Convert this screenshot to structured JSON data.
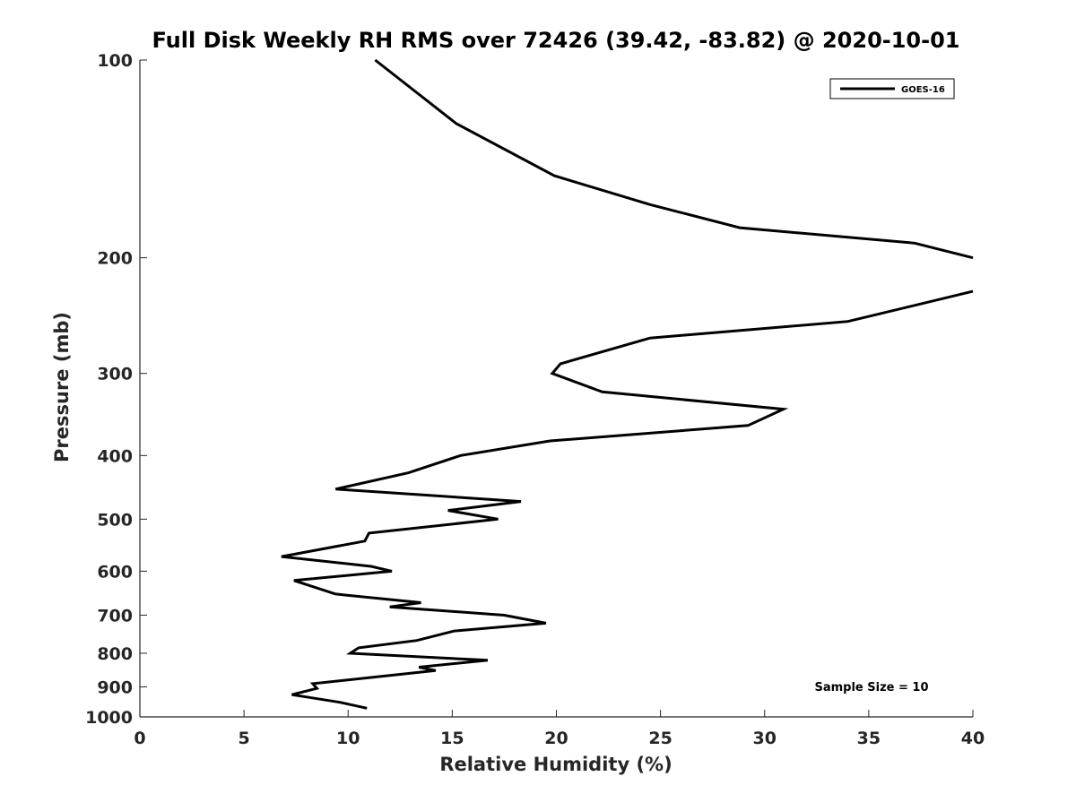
{
  "chart_data": {
    "type": "line",
    "title": "Full Disk Weekly RH RMS over 72426 (39.42, -83.82) @ 2020-10-01",
    "xlabel": "Relative Humidity (%)",
    "ylabel": "Pressure (mb)",
    "xlim": [
      0,
      40
    ],
    "ylim": [
      1000,
      100
    ],
    "y_scale": "log",
    "y_reversed": true,
    "grid": false,
    "x_ticks": [
      "0",
      "5",
      "10",
      "15",
      "20",
      "25",
      "30",
      "35",
      "40"
    ],
    "y_ticks": [
      "100",
      "200",
      "300",
      "400",
      "500",
      "600",
      "700",
      "800",
      "900",
      "1000"
    ],
    "legend": {
      "position": "top-right",
      "entries": [
        "GOES-16"
      ]
    },
    "annotation": "Sample Size = 10",
    "series": [
      {
        "name": "GOES-16",
        "color": "#000000",
        "segments": [
          [
            {
              "x": 11.3,
              "y": 100
            },
            {
              "x": 15.2,
              "y": 125
            },
            {
              "x": 19.9,
              "y": 150
            },
            {
              "x": 24.5,
              "y": 166
            },
            {
              "x": 28.8,
              "y": 180
            },
            {
              "x": 37.2,
              "y": 190
            },
            {
              "x": 40.0,
              "y": 200
            }
          ],
          [
            {
              "x": 40.0,
              "y": 225
            },
            {
              "x": 34.0,
              "y": 250
            },
            {
              "x": 24.5,
              "y": 265
            },
            {
              "x": 20.2,
              "y": 290
            },
            {
              "x": 19.8,
              "y": 300
            },
            {
              "x": 22.2,
              "y": 320
            },
            {
              "x": 30.9,
              "y": 340
            },
            {
              "x": 29.2,
              "y": 360
            },
            {
              "x": 19.7,
              "y": 380
            },
            {
              "x": 15.4,
              "y": 400
            },
            {
              "x": 12.9,
              "y": 425
            },
            {
              "x": 9.4,
              "y": 450
            },
            {
              "x": 18.3,
              "y": 470
            },
            {
              "x": 14.8,
              "y": 485
            },
            {
              "x": 17.2,
              "y": 500
            },
            {
              "x": 11.0,
              "y": 525
            },
            {
              "x": 10.8,
              "y": 540
            },
            {
              "x": 6.8,
              "y": 570
            },
            {
              "x": 11.1,
              "y": 590
            },
            {
              "x": 12.1,
              "y": 600
            },
            {
              "x": 7.4,
              "y": 620
            },
            {
              "x": 9.4,
              "y": 650
            },
            {
              "x": 13.5,
              "y": 670
            },
            {
              "x": 12.0,
              "y": 680
            },
            {
              "x": 17.5,
              "y": 700
            },
            {
              "x": 19.5,
              "y": 720
            },
            {
              "x": 15.1,
              "y": 740
            },
            {
              "x": 13.3,
              "y": 765
            },
            {
              "x": 10.5,
              "y": 785
            },
            {
              "x": 10.1,
              "y": 800
            },
            {
              "x": 16.7,
              "y": 820
            },
            {
              "x": 13.4,
              "y": 840
            },
            {
              "x": 14.2,
              "y": 850
            },
            {
              "x": 8.3,
              "y": 890
            },
            {
              "x": 8.5,
              "y": 905
            },
            {
              "x": 7.3,
              "y": 925
            },
            {
              "x": 9.6,
              "y": 950
            },
            {
              "x": 10.9,
              "y": 970
            }
          ]
        ]
      }
    ]
  }
}
